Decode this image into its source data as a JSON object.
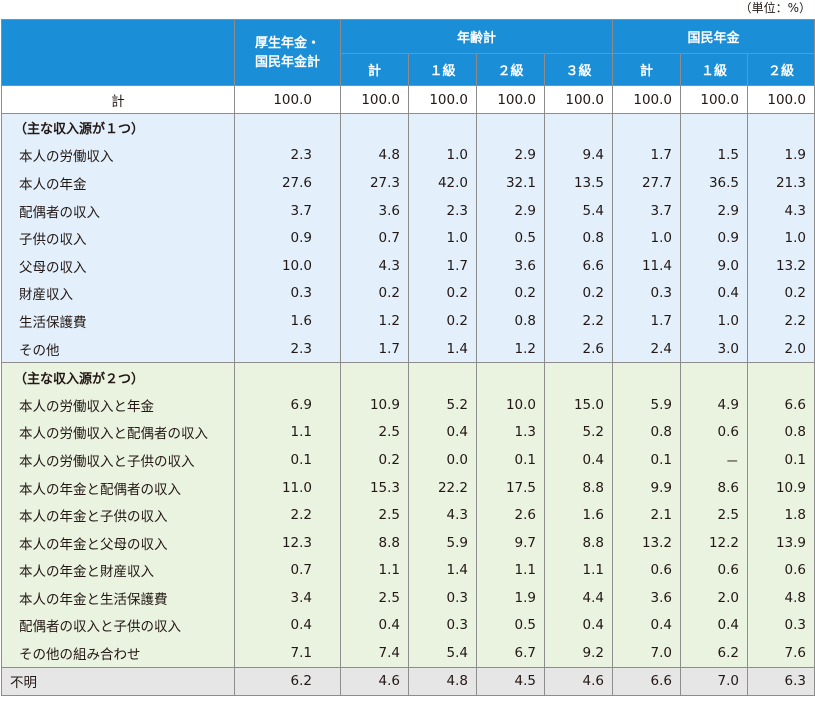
{
  "unit": "（単位：%）",
  "header": {
    "col1": "厚生年金・\n国民年金計",
    "group_age": "年齢計",
    "group_kokumin": "国民年金",
    "sub": [
      "計",
      "１級",
      "２級",
      "３級",
      "計",
      "１級",
      "２級"
    ]
  },
  "total_row": {
    "label": "計",
    "values": [
      "100.0",
      "100.0",
      "100.0",
      "100.0",
      "100.0",
      "100.0",
      "100.0",
      "100.0"
    ]
  },
  "section1": {
    "title": "（主な収入源が１つ）",
    "rows": [
      {
        "label": "本人の労働収入",
        "values": [
          "2.3",
          "4.8",
          "1.0",
          "2.9",
          "9.4",
          "1.7",
          "1.5",
          "1.9"
        ]
      },
      {
        "label": "本人の年金",
        "values": [
          "27.6",
          "27.3",
          "42.0",
          "32.1",
          "13.5",
          "27.7",
          "36.5",
          "21.3"
        ]
      },
      {
        "label": "配偶者の収入",
        "values": [
          "3.7",
          "3.6",
          "2.3",
          "2.9",
          "5.4",
          "3.7",
          "2.9",
          "4.3"
        ]
      },
      {
        "label": "子供の収入",
        "values": [
          "0.9",
          "0.7",
          "1.0",
          "0.5",
          "0.8",
          "1.0",
          "0.9",
          "1.0"
        ]
      },
      {
        "label": "父母の収入",
        "values": [
          "10.0",
          "4.3",
          "1.7",
          "3.6",
          "6.6",
          "11.4",
          "9.0",
          "13.2"
        ]
      },
      {
        "label": "財産収入",
        "values": [
          "0.3",
          "0.2",
          "0.2",
          "0.2",
          "0.2",
          "0.3",
          "0.4",
          "0.2"
        ]
      },
      {
        "label": "生活保護費",
        "values": [
          "1.6",
          "1.2",
          "0.2",
          "0.8",
          "2.2",
          "1.7",
          "1.0",
          "2.2"
        ]
      },
      {
        "label": "その他",
        "values": [
          "2.3",
          "1.7",
          "1.4",
          "1.2",
          "2.6",
          "2.4",
          "3.0",
          "2.0"
        ]
      }
    ]
  },
  "section2": {
    "title": "（主な収入源が２つ）",
    "rows": [
      {
        "label": "本人の労働収入と年金",
        "values": [
          "6.9",
          "10.9",
          "5.2",
          "10.0",
          "15.0",
          "5.9",
          "4.9",
          "6.6"
        ]
      },
      {
        "label": "本人の労働収入と配偶者の収入",
        "values": [
          "1.1",
          "2.5",
          "0.4",
          "1.3",
          "5.2",
          "0.8",
          "0.6",
          "0.8"
        ]
      },
      {
        "label": "本人の労働収入と子供の収入",
        "values": [
          "0.1",
          "0.2",
          "0.0",
          "0.1",
          "0.4",
          "0.1",
          "－",
          "0.1"
        ]
      },
      {
        "label": "本人の年金と配偶者の収入",
        "values": [
          "11.0",
          "15.3",
          "22.2",
          "17.5",
          "8.8",
          "9.9",
          "8.6",
          "10.9"
        ]
      },
      {
        "label": "本人の年金と子供の収入",
        "values": [
          "2.2",
          "2.5",
          "4.3",
          "2.6",
          "1.6",
          "2.1",
          "2.5",
          "1.8"
        ]
      },
      {
        "label": "本人の年金と父母の収入",
        "values": [
          "12.3",
          "8.8",
          "5.9",
          "9.7",
          "8.8",
          "13.2",
          "12.2",
          "13.9"
        ]
      },
      {
        "label": "本人の年金と財産収入",
        "values": [
          "0.7",
          "1.1",
          "1.4",
          "1.1",
          "1.1",
          "0.6",
          "0.6",
          "0.6"
        ]
      },
      {
        "label": "本人の年金と生活保護費",
        "values": [
          "3.4",
          "2.5",
          "0.3",
          "1.9",
          "4.4",
          "3.6",
          "2.0",
          "4.8"
        ]
      },
      {
        "label": "配偶者の収入と子供の収入",
        "values": [
          "0.4",
          "0.4",
          "0.3",
          "0.5",
          "0.4",
          "0.4",
          "0.4",
          "0.3"
        ]
      },
      {
        "label": "その他の組み合わせ",
        "values": [
          "7.1",
          "7.4",
          "5.4",
          "6.7",
          "9.2",
          "7.0",
          "6.2",
          "7.6"
        ]
      }
    ]
  },
  "unknown_row": {
    "label": "不明",
    "values": [
      "6.2",
      "4.6",
      "4.8",
      "4.5",
      "4.6",
      "6.6",
      "7.0",
      "6.3"
    ]
  },
  "colors": {
    "header_bg": "#1b8ed8",
    "section1_bg": "#e3f0fb",
    "section2_bg": "#eaf2e0",
    "unknown_bg": "#e6e6e6"
  }
}
